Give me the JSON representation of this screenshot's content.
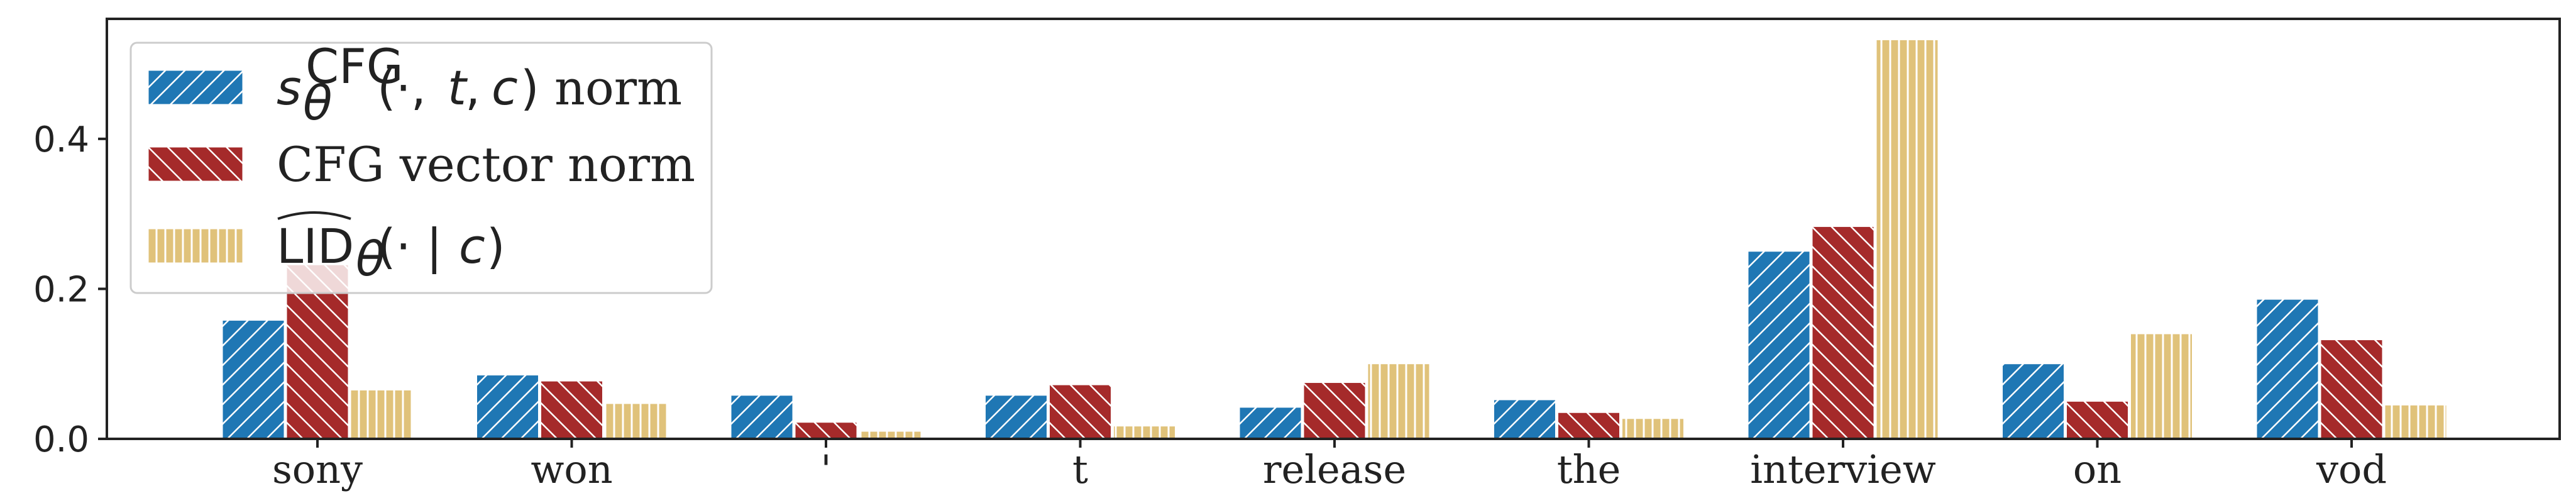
{
  "chart_data": {
    "type": "bar",
    "title": "",
    "xlabel": "",
    "ylabel": "",
    "categories": [
      "sony",
      "won",
      "'",
      "t",
      "release",
      "the",
      "interview",
      "on",
      "vod"
    ],
    "series": [
      {
        "name": "s_θ^CFG(·, t, c) norm",
        "color": "#1f77b4",
        "hatch": "diagonal-forward",
        "values": [
          0.158,
          0.085,
          0.058,
          0.058,
          0.042,
          0.052,
          0.25,
          0.1,
          0.186
        ]
      },
      {
        "name": "CFG vector norm",
        "color": "#a52a2a",
        "hatch": "diagonal-backward",
        "values": [
          0.232,
          0.077,
          0.022,
          0.072,
          0.075,
          0.035,
          0.283,
          0.05,
          0.132
        ]
      },
      {
        "name": "LID_θ(· | c)",
        "color": "#e0c27a",
        "hatch": "vertical",
        "values": [
          0.065,
          0.047,
          0.01,
          0.017,
          0.1,
          0.027,
          0.532,
          0.14,
          0.045
        ]
      }
    ],
    "yticks": [
      "0.0",
      "0.2",
      "0.4"
    ],
    "ylim": [
      0,
      0.56
    ],
    "grid": false,
    "legend_position": "top-left"
  }
}
